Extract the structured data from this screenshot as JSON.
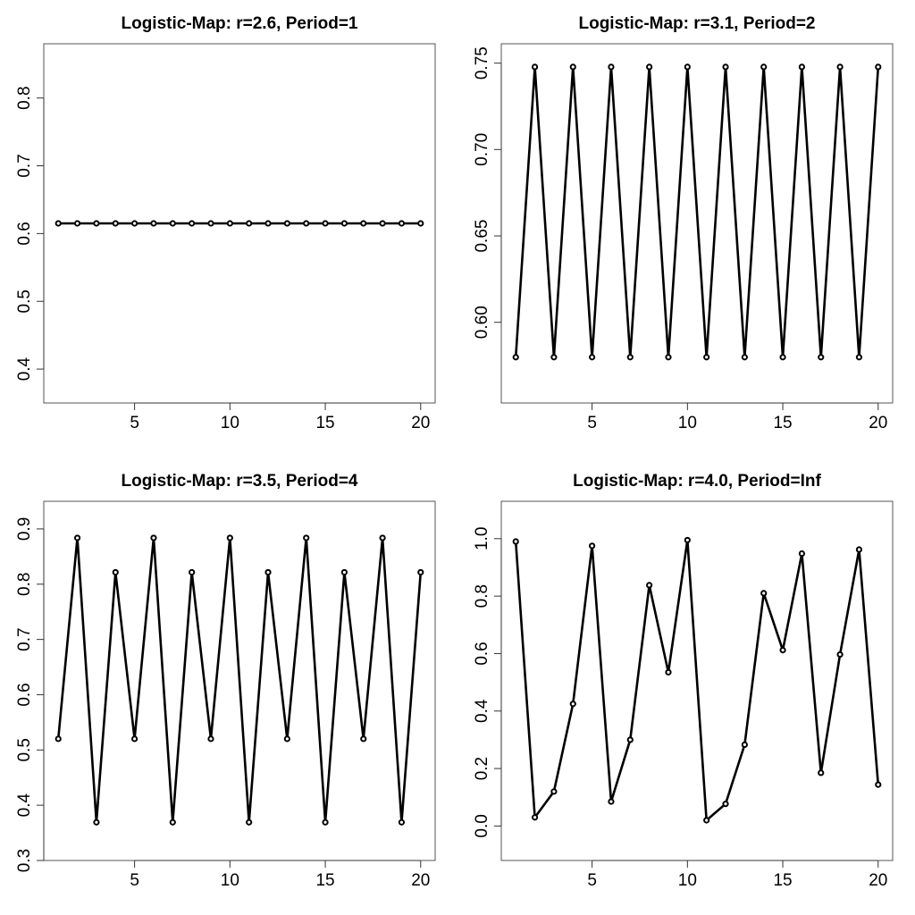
{
  "chart_data": [
    {
      "type": "line",
      "title": "Logistic-Map: r=2.6, Period=1",
      "xlabel": "",
      "ylabel": "",
      "x": [
        1,
        2,
        3,
        4,
        5,
        6,
        7,
        8,
        9,
        10,
        11,
        12,
        13,
        14,
        15,
        16,
        17,
        18,
        19,
        20
      ],
      "values": [
        0.615,
        0.615,
        0.615,
        0.615,
        0.615,
        0.615,
        0.615,
        0.615,
        0.615,
        0.615,
        0.615,
        0.615,
        0.615,
        0.615,
        0.615,
        0.615,
        0.615,
        0.615,
        0.615,
        0.615
      ],
      "xlim": [
        0.24,
        20.76
      ],
      "ylim": [
        0.35,
        0.88
      ],
      "xticks": [
        5,
        10,
        15,
        20
      ],
      "yticks": [
        0.4,
        0.5,
        0.6,
        0.7,
        0.8
      ],
      "ytick_labels": [
        "0.4",
        "0.5",
        "0.6",
        "0.7",
        "0.8"
      ],
      "grid": false
    },
    {
      "type": "line",
      "title": "Logistic-Map: r=3.1, Period=2",
      "xlabel": "",
      "ylabel": "",
      "x": [
        1,
        2,
        3,
        4,
        5,
        6,
        7,
        8,
        9,
        10,
        11,
        12,
        13,
        14,
        15,
        16,
        17,
        18,
        19,
        20
      ],
      "values": [
        0.5798,
        0.7478,
        0.5798,
        0.7478,
        0.5798,
        0.7478,
        0.5798,
        0.7478,
        0.5798,
        0.7478,
        0.5798,
        0.7478,
        0.5798,
        0.7478,
        0.5798,
        0.7478,
        0.5798,
        0.7478,
        0.5798,
        0.7478
      ],
      "xlim": [
        0.24,
        20.76
      ],
      "ylim": [
        0.5533,
        0.7612
      ],
      "xticks": [
        5,
        10,
        15,
        20
      ],
      "yticks": [
        0.6,
        0.65,
        0.7,
        0.75
      ],
      "ytick_labels": [
        "0.60",
        "0.65",
        "0.70",
        "0.75"
      ],
      "grid": false
    },
    {
      "type": "line",
      "title": "Logistic-Map: r=3.5, Period=4",
      "xlabel": "",
      "ylabel": "",
      "x": [
        1,
        2,
        3,
        4,
        5,
        6,
        7,
        8,
        9,
        10,
        11,
        12,
        13,
        14,
        15,
        16,
        17,
        18,
        19,
        20
      ],
      "values": [
        0.5201,
        0.8838,
        0.3691,
        0.8215,
        0.5201,
        0.8838,
        0.3691,
        0.8215,
        0.5201,
        0.8838,
        0.3691,
        0.8215,
        0.5201,
        0.8838,
        0.3691,
        0.8215,
        0.5201,
        0.8838,
        0.3691,
        0.8215
      ],
      "xlim": [
        0.24,
        20.76
      ],
      "ylim": [
        0.3,
        0.95
      ],
      "xticks": [
        5,
        10,
        15,
        20
      ],
      "yticks": [
        0.3,
        0.4,
        0.5,
        0.6,
        0.7,
        0.8,
        0.9
      ],
      "ytick_labels": [
        "0.3",
        "0.4",
        "0.5",
        "0.6",
        "0.7",
        "0.8",
        "0.9"
      ],
      "grid": false
    },
    {
      "type": "line",
      "title": "Logistic-Map: r=4.0, Period=Inf",
      "xlabel": "",
      "ylabel": "",
      "x": [
        1,
        2,
        3,
        4,
        5,
        6,
        7,
        8,
        9,
        10,
        11,
        12,
        13,
        14,
        15,
        16,
        17,
        18,
        19,
        20
      ],
      "values": [
        0.99,
        0.03,
        0.12,
        0.425,
        0.975,
        0.085,
        0.3,
        0.838,
        0.535,
        0.995,
        0.02,
        0.077,
        0.283,
        0.81,
        0.612,
        0.948,
        0.185,
        0.597,
        0.962,
        0.144
      ],
      "xlim": [
        0.24,
        20.76
      ],
      "ylim": [
        -0.12,
        1.13
      ],
      "xticks": [
        5,
        10,
        15,
        20
      ],
      "yticks": [
        0.0,
        0.2,
        0.4,
        0.6,
        0.8,
        1.0
      ],
      "ytick_labels": [
        "0.0",
        "0.2",
        "0.4",
        "0.6",
        "0.8",
        "1.0"
      ],
      "grid": false
    }
  ]
}
